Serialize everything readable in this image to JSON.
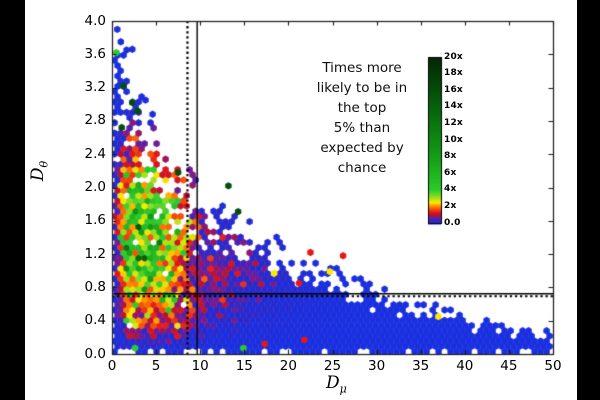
{
  "colors": {
    "background": "#ffffff",
    "letterbox": "#000000",
    "frame": "#1a1a1a",
    "text": "#000000"
  },
  "chart_data": {
    "type": "hexbin",
    "title": "",
    "xlabel": {
      "main": "D",
      "sub": "μ"
    },
    "ylabel": {
      "main": "D",
      "sub": "θ"
    },
    "xlim": [
      0,
      50
    ],
    "ylim": [
      0.0,
      4.0
    ],
    "x_ticks": [
      "0",
      "5",
      "10",
      "15",
      "20",
      "25",
      "30",
      "35",
      "40",
      "45",
      "50"
    ],
    "y_ticks": [
      "4.0",
      "3.6",
      "3.2",
      "2.8",
      "2.4",
      "2.0",
      "1.6",
      "1.2",
      "0.8",
      "0.4",
      "0.0"
    ],
    "grid": false,
    "colorbar": {
      "title_lines": [
        "Times more",
        "likely to be in",
        "the top",
        "5% than",
        "expected by",
        "chance"
      ],
      "tick_labels": [
        "20x",
        "18x",
        "16x",
        "14x",
        "12x",
        "10x",
        "8x",
        "6x",
        "4x",
        "2x",
        "0.0"
      ],
      "vmin": 0.0,
      "vmax": 20.0,
      "position": "right-inside"
    },
    "colormap_stops": [
      [
        0.0,
        "#1a2fe0"
      ],
      [
        0.4,
        "#2e28c8"
      ],
      [
        0.7,
        "#7c1a8e"
      ],
      [
        1.0,
        "#b41238"
      ],
      [
        1.35,
        "#e61717"
      ],
      [
        2.0,
        "#ff7d00"
      ],
      [
        2.5,
        "#ffe800"
      ],
      [
        3.2,
        "#8fdd1f"
      ],
      [
        4.0,
        "#2ecc2e"
      ],
      [
        6.0,
        "#1fb41f"
      ],
      [
        9.0,
        "#119415"
      ],
      [
        13.0,
        "#086c0e"
      ],
      [
        17.0,
        "#044408"
      ],
      [
        20.0,
        "#022706"
      ]
    ],
    "reference_lines": [
      {
        "orientation": "vertical",
        "value": 8.5,
        "style": "dashed"
      },
      {
        "orientation": "vertical",
        "value": 9.6,
        "style": "solid"
      },
      {
        "orientation": "horizontal",
        "value": 0.73,
        "style": "solid"
      },
      {
        "orientation": "horizontal",
        "value": 0.7,
        "style": "dashed"
      }
    ],
    "point_envelope": [
      [
        0,
        4.05
      ],
      [
        2,
        3.7
      ],
      [
        5,
        2.9
      ],
      [
        8,
        2.35
      ],
      [
        10,
        2.05
      ],
      [
        15,
        1.65
      ],
      [
        20,
        1.35
      ],
      [
        25,
        1.12
      ],
      [
        30,
        0.92
      ],
      [
        32,
        0.8
      ],
      [
        35,
        0.63
      ],
      [
        40,
        0.52
      ],
      [
        45,
        0.36
      ],
      [
        50,
        0.32
      ]
    ],
    "density_model": {
      "blend": "max",
      "components": [
        {
          "amp": 5.0,
          "cx": 3.3,
          "sx": 3.5,
          "cy": 1.4,
          "sy": 0.64
        },
        {
          "amp": 1.7,
          "cx": 5.5,
          "sx": 3.6,
          "cy": 0.75,
          "sy": 0.4
        },
        {
          "amp": 0.8,
          "cx": 9.5,
          "sx": 6.0,
          "cy": 1.0,
          "sy": 0.45
        }
      ],
      "noise_sigma": 0.5,
      "spike_probability": 0.0013,
      "pinhole_probability": 0.05,
      "seed": 20
    },
    "outlier_points": [
      {
        "x": 0.5,
        "y": 3.62,
        "kind": "green"
      },
      {
        "x": 14.9,
        "y": 0.07,
        "kind": "green"
      },
      {
        "x": 2.6,
        "y": 0.07,
        "kind": "green"
      },
      {
        "x": 1.3,
        "y": 3.22,
        "kind": "darkgreen"
      },
      {
        "x": 2.3,
        "y": 3.02,
        "kind": "darkgreen"
      },
      {
        "x": 2.9,
        "y": 2.92,
        "kind": "darkgreen"
      },
      {
        "x": 1.1,
        "y": 2.72,
        "kind": "darkgreen"
      },
      {
        "x": 7.5,
        "y": 2.18,
        "kind": "darkgreen"
      },
      {
        "x": 13.2,
        "y": 2.02,
        "kind": "darkgreen"
      },
      {
        "x": 14.3,
        "y": 1.71,
        "kind": "darkgreen"
      },
      {
        "x": 37.0,
        "y": 0.45,
        "kind": "yellow"
      },
      {
        "x": 18.4,
        "y": 0.97,
        "kind": "yellow"
      },
      {
        "x": 24.7,
        "y": 0.99,
        "kind": "yellow"
      },
      {
        "x": 21.2,
        "y": 0.85,
        "kind": "red"
      },
      {
        "x": 17.3,
        "y": 0.12,
        "kind": "red"
      },
      {
        "x": 21.8,
        "y": 0.17,
        "kind": "red"
      },
      {
        "x": 22.5,
        "y": 1.22,
        "kind": "red"
      },
      {
        "x": 26.2,
        "y": 1.18,
        "kind": "red"
      },
      {
        "x": 2.3,
        "y": 3.66,
        "kind": "blue"
      },
      {
        "x": 1.0,
        "y": 3.75,
        "kind": "blue"
      },
      {
        "x": 0.6,
        "y": 3.9,
        "kind": "blue"
      },
      {
        "x": 3.8,
        "y": 3.05,
        "kind": "blue"
      },
      {
        "x": 4.6,
        "y": 2.88,
        "kind": "blue"
      }
    ],
    "kind_values": {
      "blue": 0.05,
      "red": 1.35,
      "orange": 2.0,
      "yellow": 2.5,
      "green": 4.2,
      "darkgreen": 16.0
    }
  }
}
